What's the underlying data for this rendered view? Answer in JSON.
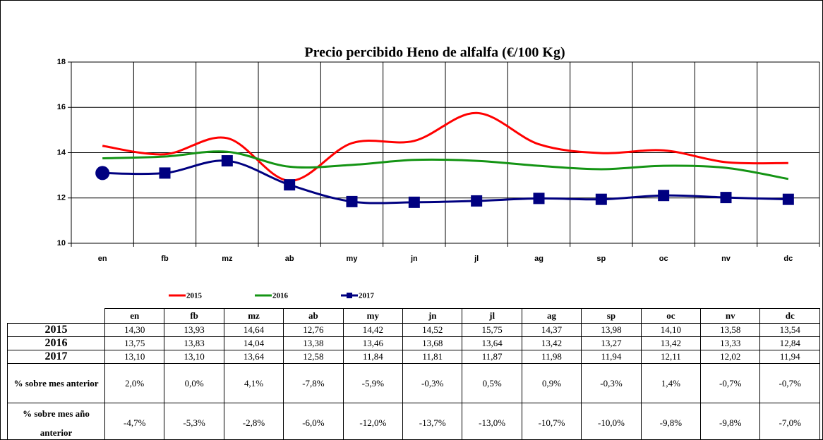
{
  "chart_data": {
    "type": "line",
    "title": "Precio percibido Heno de alfalfa (€/100 Kg)",
    "categories": [
      "en",
      "fb",
      "mz",
      "ab",
      "my",
      "jn",
      "jl",
      "ag",
      "sp",
      "oc",
      "nv",
      "dc"
    ],
    "ylim": [
      10,
      18
    ],
    "yticks": [
      10,
      12,
      14,
      16,
      18
    ],
    "grid": true,
    "series": [
      {
        "name": "2015",
        "color": "#ff0000",
        "values": [
          14.3,
          13.93,
          14.64,
          12.76,
          14.42,
          14.52,
          15.75,
          14.37,
          13.98,
          14.1,
          13.58,
          13.54
        ],
        "value_labels": [
          "14,30",
          "13,93",
          "14,64",
          "12,76",
          "14,42",
          "14,52",
          "15,75",
          "14,37",
          "13,98",
          "14,10",
          "13,58",
          "13,54"
        ]
      },
      {
        "name": "2016",
        "color": "#149414",
        "values": [
          13.75,
          13.83,
          14.04,
          13.38,
          13.46,
          13.68,
          13.64,
          13.42,
          13.27,
          13.42,
          13.33,
          12.84
        ],
        "value_labels": [
          "13,75",
          "13,83",
          "14,04",
          "13,38",
          "13,46",
          "13,68",
          "13,64",
          "13,42",
          "13,27",
          "13,42",
          "13,33",
          "12,84"
        ]
      },
      {
        "name": "2017",
        "color": "#000080",
        "markers": true,
        "values": [
          13.1,
          13.1,
          13.64,
          12.58,
          11.84,
          11.81,
          11.87,
          11.98,
          11.94,
          12.11,
          12.02,
          11.94
        ],
        "value_labels": [
          "13,10",
          "13,10",
          "13,64",
          "12,58",
          "11,84",
          "11,81",
          "11,87",
          "11,98",
          "11,94",
          "12,11",
          "12,02",
          "11,94"
        ]
      }
    ]
  },
  "table": {
    "rows": [
      {
        "label": "% sobre mes anterior",
        "values": [
          "2,0%",
          "0,0%",
          "4,1%",
          "-7,8%",
          "-5,9%",
          "-0,3%",
          "0,5%",
          "0,9%",
          "-0,3%",
          "1,4%",
          "-0,7%",
          "-0,7%"
        ]
      },
      {
        "label": "% sobre mes año anterior",
        "values": [
          "-4,7%",
          "-5,3%",
          "-2,8%",
          "-6,0%",
          "-12,0%",
          "-13,7%",
          "-13,0%",
          "-10,7%",
          "-10,0%",
          "-9,8%",
          "-9,8%",
          "-7,0%"
        ]
      }
    ]
  }
}
